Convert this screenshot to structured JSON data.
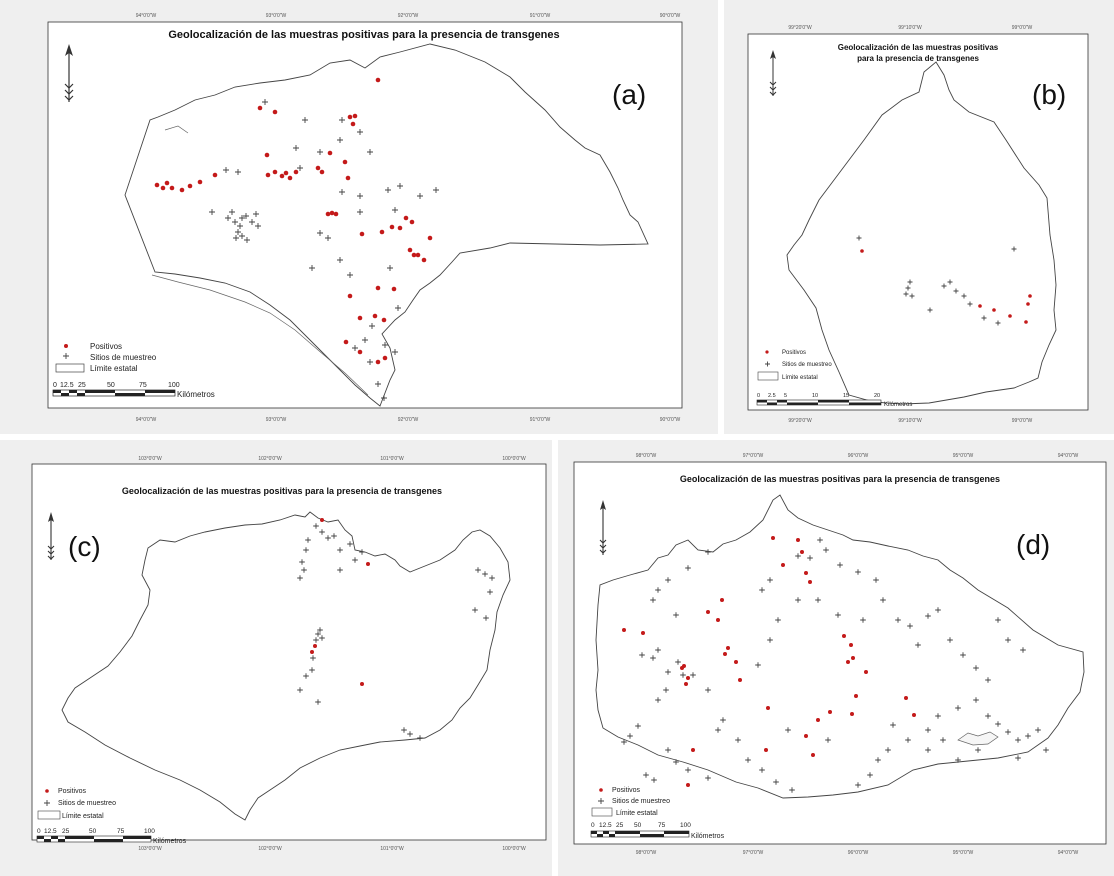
{
  "colors": {
    "positive": "#c41a1a",
    "site": "#444444",
    "boundary": "#444444",
    "panel_bg": "#efefef"
  },
  "icons": {
    "north_arrow": "north-arrow-icon"
  },
  "panels": {
    "a": {
      "label": "(a)",
      "title": "Geolocalización de las muestras positivas para la presencia de transgenes",
      "legend": {
        "positive": "Positivos",
        "site": "Sitios de muestreo",
        "boundary": "Límite estatal"
      },
      "scale": {
        "ticks": [
          "0",
          "12.5",
          "25",
          "50",
          "75",
          "100"
        ],
        "unit": "Kilómetros"
      },
      "lon_ticks": [
        "94°0'0\"W",
        "93°0'0\"W",
        "92°0'0\"W",
        "91°0'0\"W",
        "90°0'0\"W"
      ]
    },
    "b": {
      "label": "(b)",
      "title_line1": "Geolocalización de las muestras positivas",
      "title_line2": "para la presencia de transgenes",
      "legend": {
        "positive": "Positivos",
        "site": "Sitios de muestreo",
        "boundary": "Límite estatal"
      },
      "scale": {
        "ticks": [
          "0",
          "2.5",
          "5",
          "10",
          "15",
          "20"
        ],
        "unit": "Kilómetros"
      },
      "lon_ticks": [
        "99°20'0\"W",
        "99°10'0\"W",
        "99°0'0\"W"
      ]
    },
    "c": {
      "label": "(c)",
      "title": "Geolocalización de las muestras positivas para la presencia de transgenes",
      "legend": {
        "positive": "Positivos",
        "site": "Sitios de muestreo",
        "boundary": "Límite estatal"
      },
      "scale": {
        "ticks": [
          "0",
          "12.5",
          "25",
          "50",
          "75",
          "100"
        ],
        "unit": "Kilómetros"
      },
      "lon_ticks": [
        "103°0'0\"W",
        "102°0'0\"W",
        "101°0'0\"W",
        "100°0'0\"W"
      ]
    },
    "d": {
      "label": "(d)",
      "title": "Geolocalización de las muestras positivas para la presencia de transgenes",
      "legend": {
        "positive": "Positivos",
        "site": "Sitios de muestreo",
        "boundary": "Límite estatal"
      },
      "scale": {
        "ticks": [
          "0",
          "12.5",
          "25",
          "50",
          "75",
          "100"
        ],
        "unit": "Kilómetros"
      },
      "lon_ticks": [
        "98°0'0\"W",
        "97°0'0\"W",
        "96°0'0\"W",
        "95°0'0\"W",
        "94°0'0\"W"
      ]
    }
  }
}
